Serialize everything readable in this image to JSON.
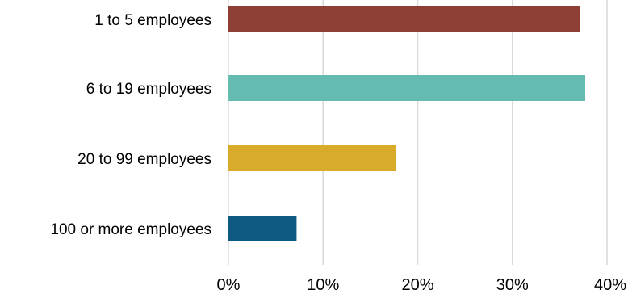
{
  "chart_data": {
    "type": "bar",
    "orientation": "horizontal",
    "categories": [
      "1 to 5 employees",
      "6 to 19 employees",
      "20 to 99 employees",
      "100 or more employees"
    ],
    "values": [
      37.1,
      37.7,
      17.7,
      7.2
    ],
    "colors": [
      "#8e3f35",
      "#65bbb0",
      "#d8ab2b",
      "#0f5a82"
    ],
    "xlim": [
      0,
      40
    ],
    "xticks": [
      0,
      10,
      20,
      30,
      40
    ],
    "tick_labels": [
      "0%",
      "10%",
      "20%",
      "30%",
      "40%"
    ],
    "grid": true,
    "legend": "none",
    "title": "",
    "xlabel": "",
    "ylabel": ""
  }
}
